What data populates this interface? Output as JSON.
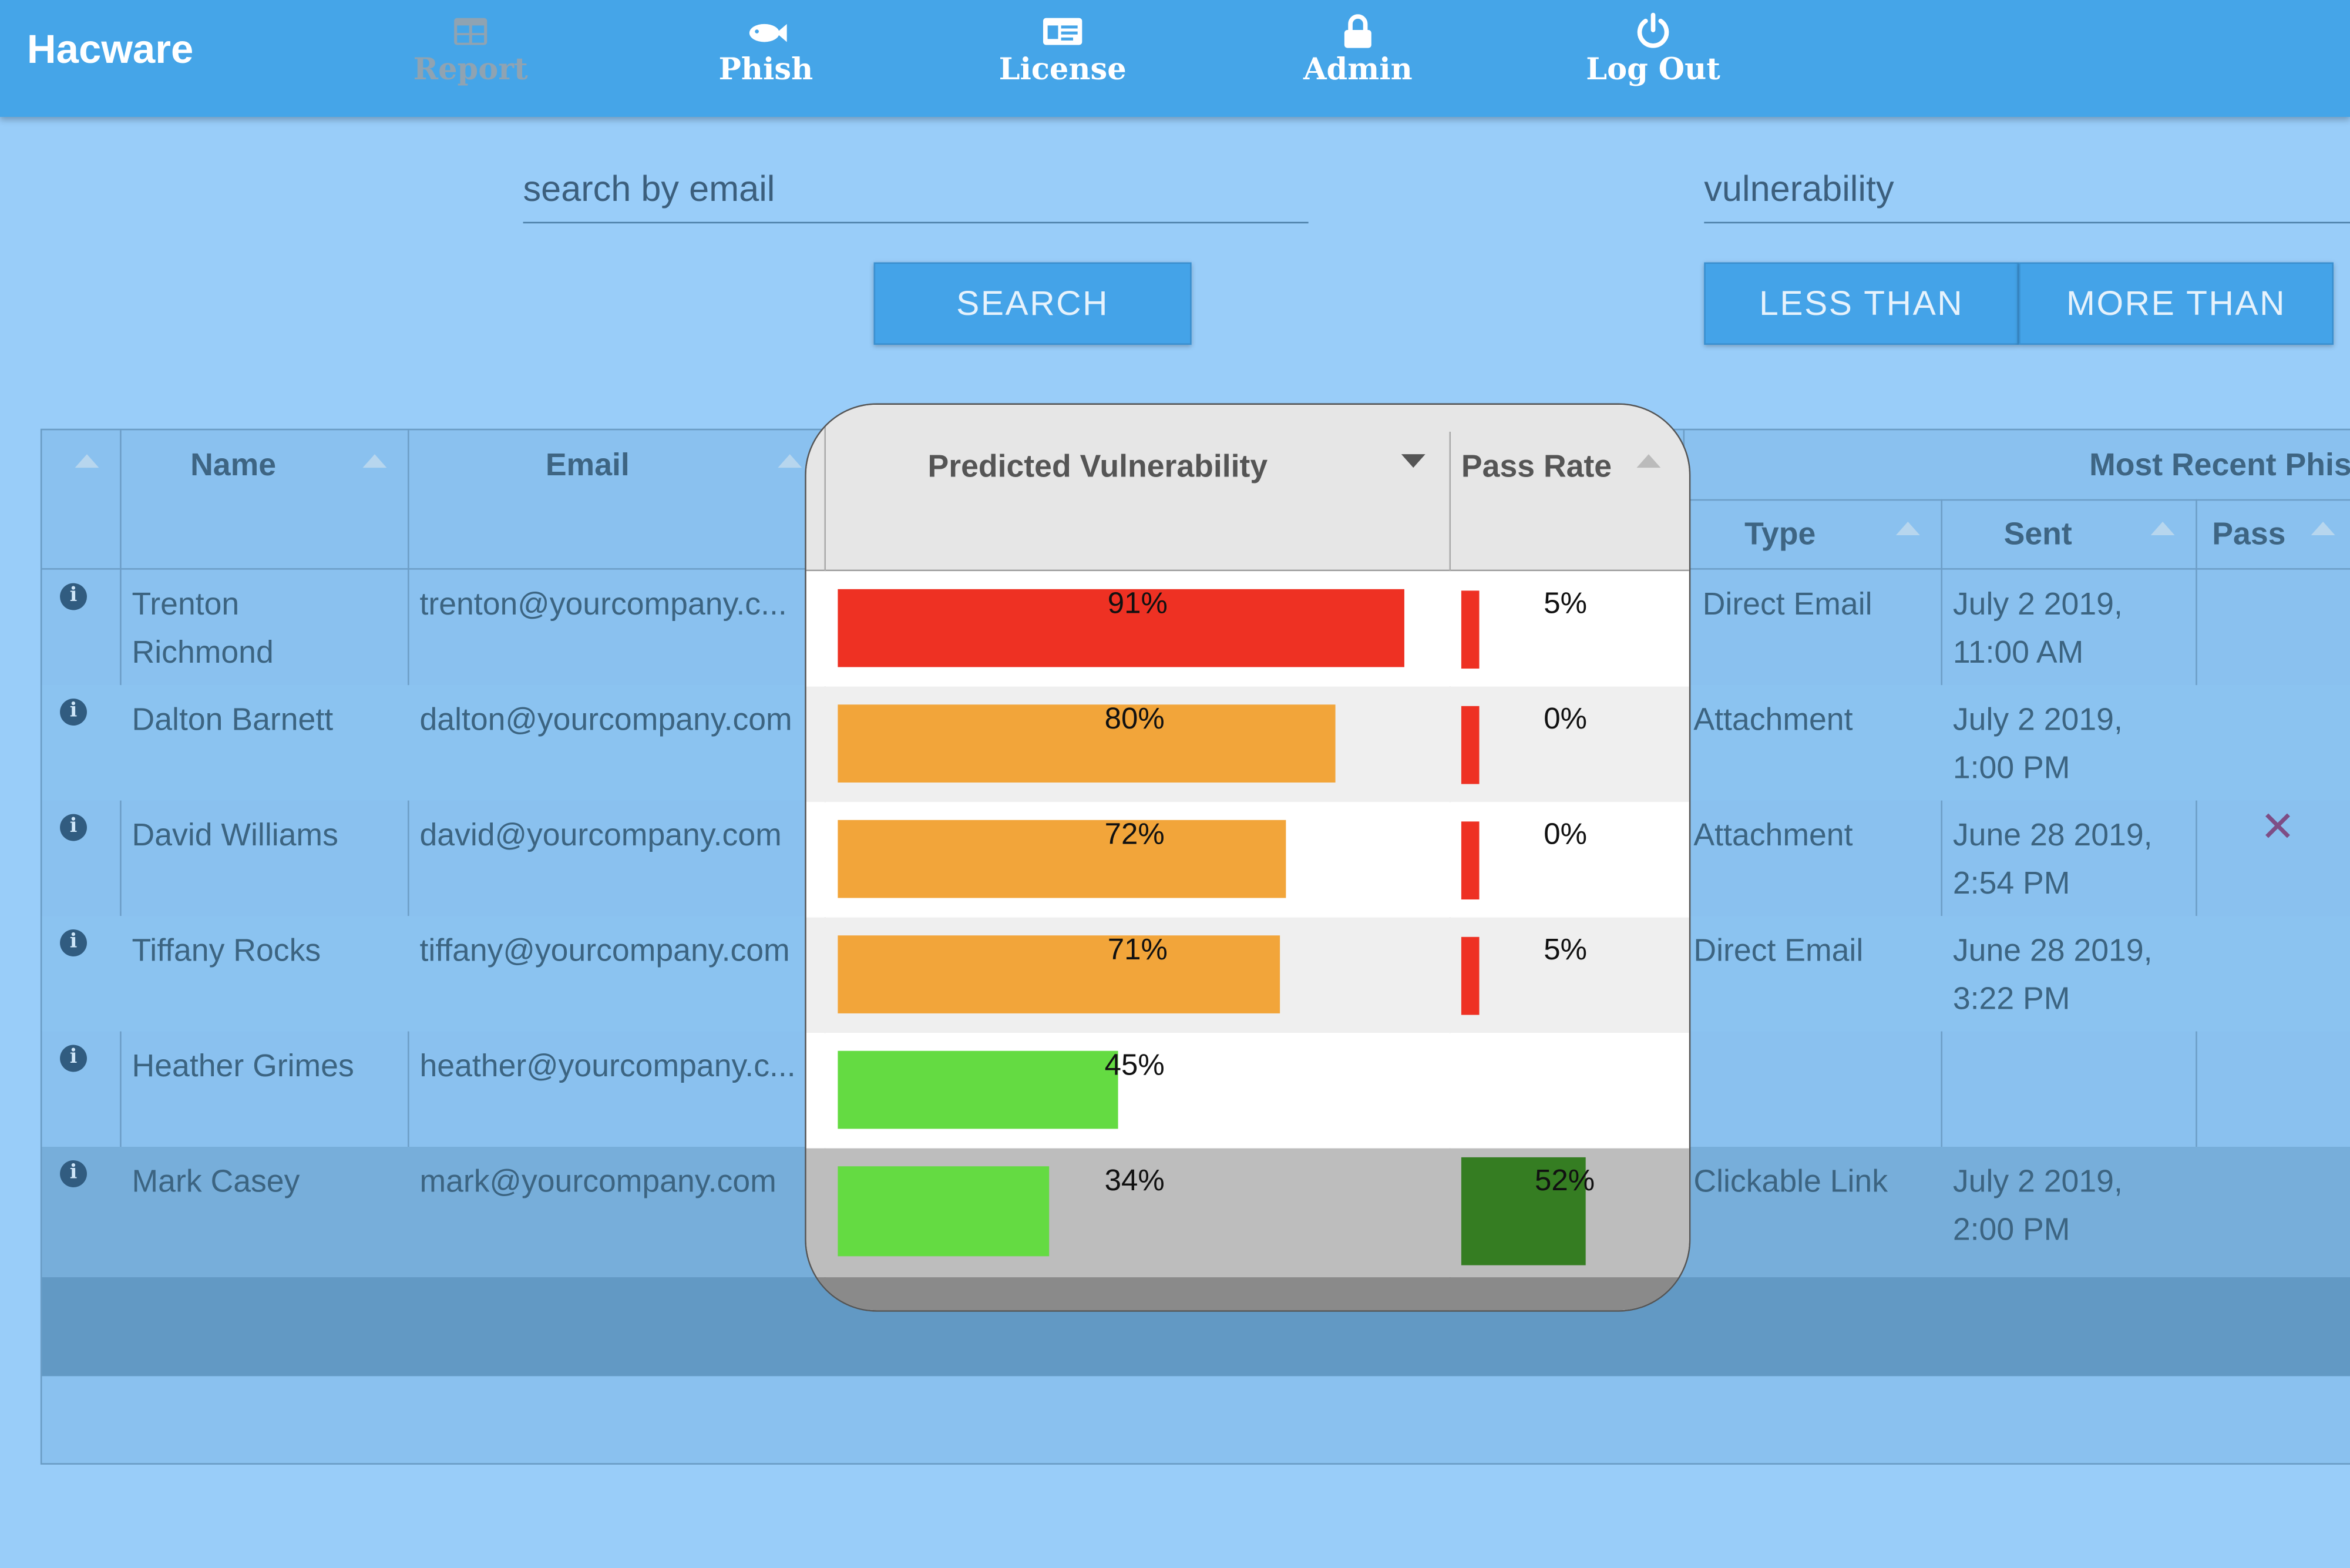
{
  "nav": {
    "brand": "Hacware",
    "items": [
      {
        "label": "Report",
        "icon": "table-icon",
        "active": true
      },
      {
        "label": "Phish",
        "icon": "fish-icon"
      },
      {
        "label": "License",
        "icon": "id-card-icon"
      },
      {
        "label": "Admin",
        "icon": "lock-icon"
      },
      {
        "label": "Log Out",
        "icon": "power-icon"
      }
    ]
  },
  "search": {
    "email_placeholder": "search by email",
    "search_button": "SEARCH",
    "vuln_placeholder": "vulnerability",
    "less_than_button": "LESS THAN",
    "more_than_button": "MORE THAN"
  },
  "table": {
    "headers": {
      "name": "Name",
      "email": "Email",
      "predicted_vulnerability": "Predicted Vulnerability",
      "pass_rate": "Pass Rate",
      "most_recent_phish": "Most Recent Phis",
      "type": "Type",
      "sent": "Sent",
      "pass": "Pass"
    },
    "rows": [
      {
        "name_line1": "Trenton",
        "name_line2": "Richmond",
        "email": "trenton@yourcompany.c...",
        "vuln": 91,
        "vuln_label": "91%",
        "vuln_color": "#EE3123",
        "pass": 5,
        "pass_label": "5%",
        "type": "Direct Email",
        "sent_line1": "July 2 2019,",
        "sent_line2": "11:00 AM",
        "pass_mark": ""
      },
      {
        "name_line1": "Dalton Barnett",
        "name_line2": "",
        "email": "dalton@yourcompany.com",
        "vuln": 80,
        "vuln_label": "80%",
        "vuln_color": "#F2A53A",
        "pass": 0,
        "pass_label": "0%",
        "type": "Attachment",
        "sent_line1": "July 2 2019,",
        "sent_line2": "1:00 PM",
        "pass_mark": ""
      },
      {
        "name_line1": "David Williams",
        "name_line2": "",
        "email": "david@yourcompany.com",
        "vuln": 72,
        "vuln_label": "72%",
        "vuln_color": "#F2A53A",
        "pass": 0,
        "pass_label": "0%",
        "type": "Attachment",
        "sent_line1": "June 28 2019,",
        "sent_line2": "2:54 PM",
        "pass_mark": "✕"
      },
      {
        "name_line1": "Tiffany Rocks",
        "name_line2": "",
        "email": "tiffany@yourcompany.com",
        "vuln": 71,
        "vuln_label": "71%",
        "vuln_color": "#F2A53A",
        "pass": 5,
        "pass_label": "5%",
        "type": "Direct Email",
        "sent_line1": "June 28 2019,",
        "sent_line2": "3:22 PM",
        "pass_mark": ""
      },
      {
        "name_line1": "Heather Grimes",
        "name_line2": "",
        "email": "heather@yourcompany.c...",
        "vuln": 45,
        "vuln_label": "45%",
        "vuln_color": "#64DB42",
        "pass": null,
        "pass_label": "",
        "type": "",
        "sent_line1": "",
        "sent_line2": "",
        "pass_mark": ""
      },
      {
        "name_line1": "Mark Casey",
        "name_line2": "",
        "email": "mark@yourcompany.com",
        "vuln": 34,
        "vuln_label": "34%",
        "vuln_color": "#64DB42",
        "pass": 52,
        "pass_label": "52%",
        "type": "Clickable Link",
        "sent_line1": "July 2 2019,",
        "sent_line2": "2:00 PM",
        "pass_mark": ""
      }
    ]
  },
  "colors": {
    "nav": "#45A5E8",
    "background": "#99CDF9",
    "high": "#EE3123",
    "medium": "#F2A53A",
    "low": "#64DB42",
    "pass_good": "#357D22"
  }
}
